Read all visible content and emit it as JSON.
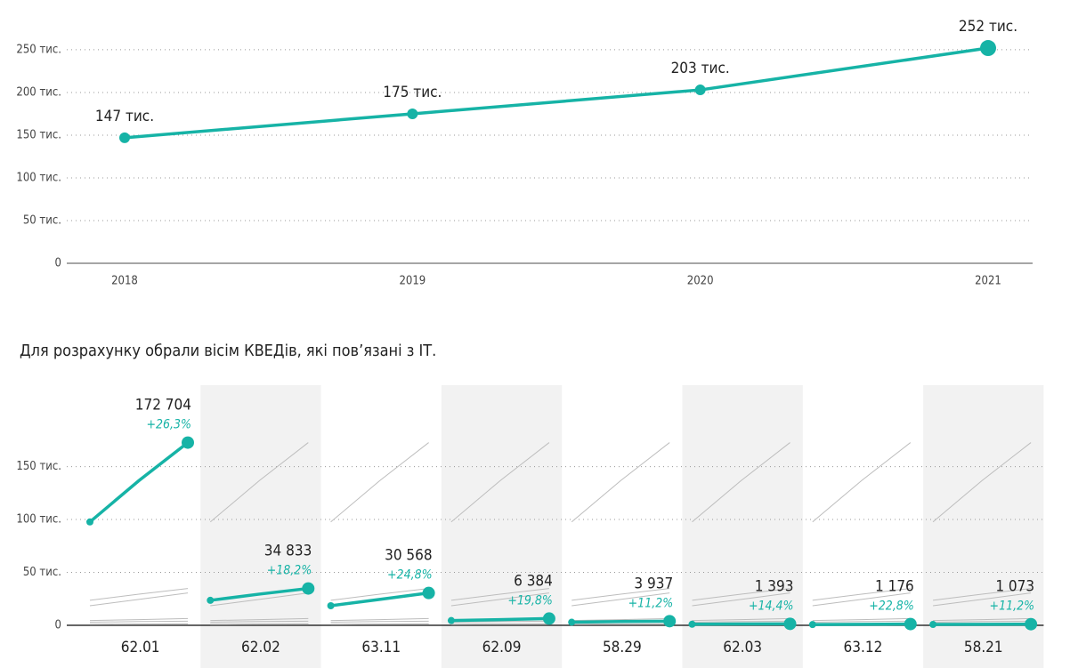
{
  "chart_data": [
    {
      "type": "line",
      "color": "#16b3a6",
      "categories": [
        "2018",
        "2019",
        "2020",
        "2021"
      ],
      "values": [
        147000,
        175000,
        203000,
        252000
      ],
      "value_labels": [
        "147 тис.",
        "175 тис.",
        "203 тис.",
        "252 тис."
      ],
      "ylim": [
        0,
        277000
      ],
      "yticks": [
        0,
        {
          "value": 50000,
          "label": "50 тис."
        },
        {
          "value": 100000,
          "label": "100 тис."
        },
        {
          "value": 150000,
          "label": "150 тис."
        },
        {
          "value": 200000,
          "label": "200 тис."
        },
        {
          "value": 250000,
          "label": "250 тис."
        }
      ],
      "grid": true
    },
    {
      "type": "multiples",
      "color": "#16b3a6",
      "background_color": "#bdbdbd",
      "title": "Для розрахунку обрали вісім КВЕДів, які пов’язані з ІТ.",
      "ylim": [
        0,
        227000
      ],
      "yticks": [
        0,
        {
          "value": 50000,
          "label": "50 тис."
        },
        {
          "value": 100000,
          "label": "100 тис."
        },
        {
          "value": 150000,
          "label": "150 тис."
        }
      ],
      "grid": true,
      "series": [
        {
          "name": "62.01",
          "values": [
            97700,
            136741,
            172704
          ],
          "value_labels": [
            null,
            null,
            "172 704"
          ],
          "change": "+26,3%"
        },
        {
          "name": "62.02",
          "values": [
            23600,
            29470,
            34833
          ],
          "value_labels": [
            null,
            null,
            "34 833"
          ],
          "change": "+18,2%"
        },
        {
          "name": "63.11",
          "values": [
            18500,
            24494,
            30568
          ],
          "value_labels": [
            null,
            null,
            "30 568"
          ],
          "change": "+24,8%"
        },
        {
          "name": "62.09",
          "values": [
            4500,
            5329,
            6384
          ],
          "value_labels": [
            null,
            null,
            "6 384"
          ],
          "change": "+19,8%"
        },
        {
          "name": "58.29",
          "values": [
            2900,
            3540,
            3937
          ],
          "value_labels": [
            null,
            null,
            "3 937"
          ],
          "change": "+11,2%"
        },
        {
          "name": "62.03",
          "values": [
            1000,
            1218,
            1393
          ],
          "value_labels": [
            null,
            null,
            "1 393"
          ],
          "change": "+14,4%"
        },
        {
          "name": "63.12",
          "values": [
            700,
            958,
            1176
          ],
          "value_labels": [
            null,
            null,
            "1 176"
          ],
          "change": "+22,8%"
        },
        {
          "name": "58.21",
          "values": [
            800,
            965,
            1073
          ],
          "value_labels": [
            null,
            null,
            "1 073"
          ],
          "change": "+11,2%"
        }
      ]
    }
  ]
}
